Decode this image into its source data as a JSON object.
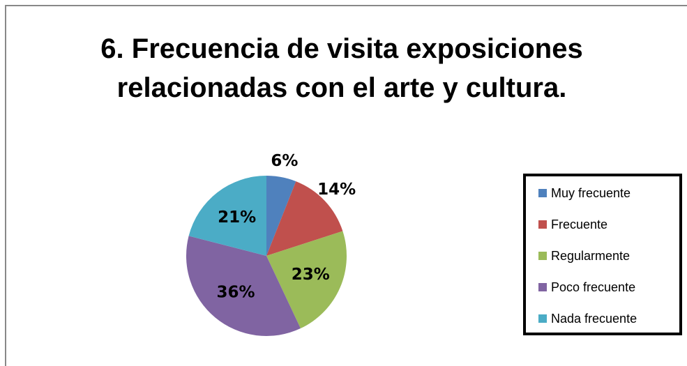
{
  "chart_data": {
    "type": "pie",
    "title": "6. Frecuencia de visita exposiciones relacionadas con el arte y cultura.",
    "categories": [
      "Muy frecuente",
      "Frecuente",
      "Regularmente",
      "Poco frecuente",
      "Nada frecuente"
    ],
    "values": [
      6,
      14,
      23,
      36,
      21
    ],
    "value_labels": [
      "6%",
      "14%",
      "23%",
      "36%",
      "21%"
    ],
    "colors": [
      "#4f81bd",
      "#c0504d",
      "#9bbb59",
      "#8064a2",
      "#4bacc6"
    ],
    "legend": "right"
  }
}
